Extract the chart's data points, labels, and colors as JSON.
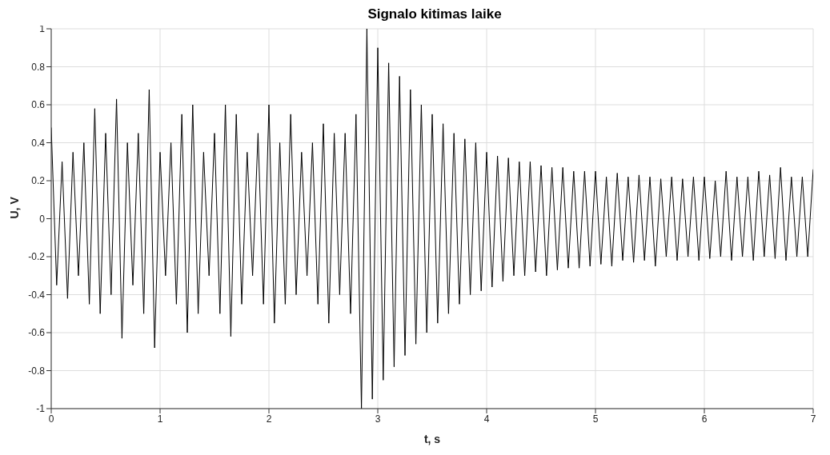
{
  "chart_data": {
    "type": "line",
    "title": "Signalo kitimas laike",
    "xlabel": "t, s",
    "ylabel": "U, V",
    "x": [
      0,
      0.05,
      0.1,
      0.15,
      0.2,
      0.25,
      0.3,
      0.35,
      0.4,
      0.45,
      0.5,
      0.55,
      0.6,
      0.65,
      0.7,
      0.75,
      0.8,
      0.85,
      0.9,
      0.95,
      1,
      1.05,
      1.1,
      1.15,
      1.2,
      1.25,
      1.3,
      1.35,
      1.4,
      1.45,
      1.5,
      1.55,
      1.6,
      1.65,
      1.7,
      1.75,
      1.8,
      1.85,
      1.9,
      1.95,
      2,
      2.05,
      2.1,
      2.15,
      2.2,
      2.25,
      2.3,
      2.35,
      2.4,
      2.45,
      2.5,
      2.55,
      2.6,
      2.65,
      2.7,
      2.75,
      2.8,
      2.85,
      2.9,
      2.95,
      3,
      3.05,
      3.1,
      3.15,
      3.2,
      3.25,
      3.3,
      3.35,
      3.4,
      3.45,
      3.5,
      3.55,
      3.6,
      3.65,
      3.7,
      3.75,
      3.8,
      3.85,
      3.9,
      3.95,
      4,
      4.05,
      4.1,
      4.15,
      4.2,
      4.25,
      4.3,
      4.35,
      4.4,
      4.45,
      4.5,
      4.55,
      4.6,
      4.65,
      4.7,
      4.75,
      4.8,
      4.85,
      4.9,
      4.95,
      5,
      5.05,
      5.1,
      5.15,
      5.2,
      5.25,
      5.3,
      5.35,
      5.4,
      5.45,
      5.5,
      5.55,
      5.6,
      5.65,
      5.7,
      5.75,
      5.8,
      5.85,
      5.9,
      5.95,
      6,
      6.05,
      6.1,
      6.15,
      6.2,
      6.25,
      6.3,
      6.35,
      6.4,
      6.45,
      6.5,
      6.55,
      6.6,
      6.65,
      6.7,
      6.75,
      6.8,
      6.85,
      6.9,
      6.95,
      7
    ],
    "series": [
      {
        "color": "#000000",
        "values": [
          0.48,
          -0.35,
          0.3,
          -0.42,
          0.35,
          -0.3,
          0.4,
          -0.45,
          0.58,
          -0.5,
          0.45,
          -0.4,
          0.63,
          -0.63,
          0.4,
          -0.35,
          0.45,
          -0.5,
          0.68,
          -0.68,
          0.35,
          -0.3,
          0.4,
          -0.45,
          0.55,
          -0.6,
          0.6,
          -0.5,
          0.35,
          -0.3,
          0.45,
          -0.5,
          0.6,
          -0.62,
          0.55,
          -0.45,
          0.35,
          -0.3,
          0.45,
          -0.45,
          0.6,
          -0.55,
          0.4,
          -0.45,
          0.55,
          -0.4,
          0.35,
          -0.3,
          0.4,
          -0.45,
          0.5,
          -0.55,
          0.45,
          -0.4,
          0.45,
          -0.5,
          0.55,
          -1,
          1,
          -0.95,
          0.9,
          -0.85,
          0.82,
          -0.78,
          0.75,
          -0.72,
          0.68,
          -0.66,
          0.6,
          -0.6,
          0.55,
          -0.55,
          0.5,
          -0.5,
          0.45,
          -0.45,
          0.42,
          -0.4,
          0.4,
          -0.38,
          0.35,
          -0.36,
          0.33,
          -0.33,
          0.32,
          -0.3,
          0.3,
          -0.3,
          0.3,
          -0.28,
          0.28,
          -0.3,
          0.27,
          -0.27,
          0.27,
          -0.26,
          0.25,
          -0.26,
          0.25,
          -0.25,
          0.25,
          -0.24,
          0.22,
          -0.25,
          0.24,
          -0.22,
          0.22,
          -0.23,
          0.23,
          -0.22,
          0.22,
          -0.25,
          0.21,
          -0.2,
          0.22,
          -0.22,
          0.21,
          -0.2,
          0.22,
          -0.22,
          0.22,
          -0.21,
          0.2,
          -0.2,
          0.25,
          -0.22,
          0.22,
          -0.2,
          0.22,
          -0.22,
          0.25,
          -0.2,
          0.23,
          -0.21,
          0.27,
          -0.22,
          0.22,
          -0.2,
          0.22,
          -0.2,
          0.26
        ]
      }
    ],
    "xlim": [
      0,
      7
    ],
    "xticks": [
      0,
      1,
      2,
      3,
      4,
      5,
      6,
      7
    ],
    "ylim": [
      -1,
      1
    ],
    "yticks": [
      -1,
      -0.8,
      -0.6,
      -0.4,
      -0.2,
      0,
      0.2,
      0.4,
      0.6,
      0.8,
      1
    ],
    "grid": true,
    "line_style": "solid"
  }
}
